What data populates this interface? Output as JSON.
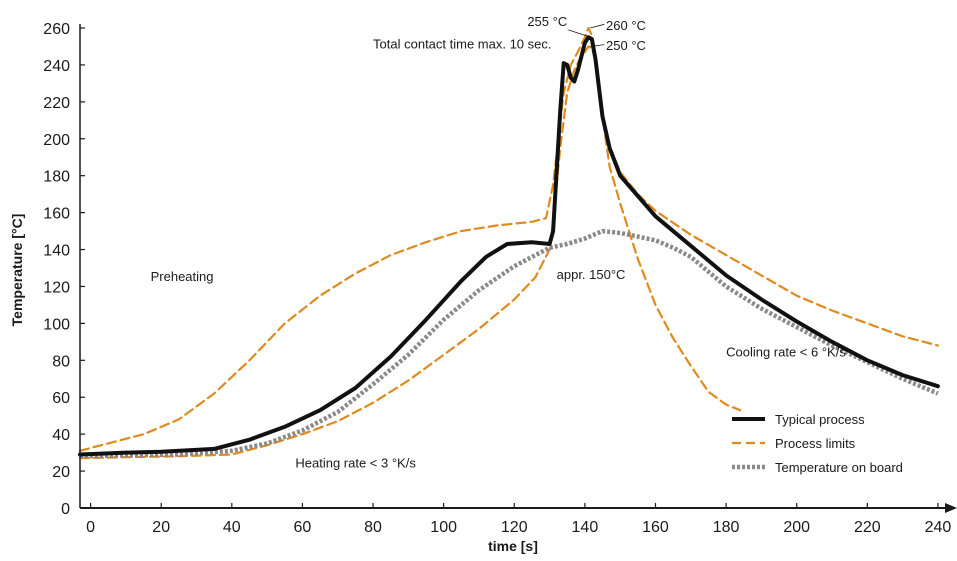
{
  "chart_data": {
    "type": "line",
    "xlabel": "time [s]",
    "ylabel": "Temperature  [°C]",
    "xlim": [
      -3,
      242
    ],
    "ylim": [
      0,
      260
    ],
    "xticks": [
      0,
      20,
      40,
      60,
      80,
      100,
      120,
      140,
      160,
      180,
      200,
      220,
      240
    ],
    "yticks": [
      0,
      20,
      40,
      60,
      80,
      100,
      120,
      140,
      160,
      180,
      200,
      220,
      240,
      260
    ],
    "legend_position": "bottom-right",
    "annotations": [
      {
        "text": "255 °C",
        "x": 135,
        "y": 261
      },
      {
        "text": "260 °C",
        "x": 146,
        "y": 259
      },
      {
        "text": "250 °C",
        "x": 146,
        "y": 248
      },
      {
        "text": "Total contact time max. 10 sec.",
        "x": 80,
        "y": 249
      },
      {
        "text": "Preheating",
        "x": 17,
        "y": 123
      },
      {
        "text": "appr. 150°C",
        "x": 132,
        "y": 124
      },
      {
        "text": "Cooling rate < 6 °K/s",
        "x": 180,
        "y": 82
      },
      {
        "text": "Heating rate < 3 °K/s",
        "x": 58,
        "y": 22
      }
    ],
    "series": [
      {
        "name": "Typical process",
        "color": "#111111",
        "style": "solid",
        "points": [
          [
            -3,
            29
          ],
          [
            10,
            30
          ],
          [
            20,
            30.5
          ],
          [
            35,
            32
          ],
          [
            45,
            37
          ],
          [
            55,
            44
          ],
          [
            65,
            53
          ],
          [
            75,
            65
          ],
          [
            85,
            82
          ],
          [
            95,
            102
          ],
          [
            105,
            123
          ],
          [
            112,
            136
          ],
          [
            118,
            143
          ],
          [
            125,
            144
          ],
          [
            130,
            143
          ],
          [
            131,
            150
          ],
          [
            133,
            215
          ],
          [
            134,
            241
          ],
          [
            135,
            240
          ],
          [
            136,
            233
          ],
          [
            137,
            231
          ],
          [
            138,
            237
          ],
          [
            140,
            252
          ],
          [
            141,
            255
          ],
          [
            142,
            254
          ],
          [
            143,
            243
          ],
          [
            145,
            212
          ],
          [
            147,
            195
          ],
          [
            150,
            180
          ],
          [
            160,
            158
          ],
          [
            170,
            142
          ],
          [
            180,
            126
          ],
          [
            190,
            113
          ],
          [
            200,
            101
          ],
          [
            210,
            90
          ],
          [
            220,
            80
          ],
          [
            230,
            72
          ],
          [
            240,
            66
          ]
        ]
      },
      {
        "name": "Process limits",
        "color": "#e08a1e",
        "style": "dashed",
        "points": [
          [
            -3,
            31
          ],
          [
            5,
            35
          ],
          [
            15,
            40
          ],
          [
            25,
            48
          ],
          [
            35,
            62
          ],
          [
            45,
            80
          ],
          [
            55,
            100
          ],
          [
            65,
            115
          ],
          [
            75,
            127
          ],
          [
            85,
            137
          ],
          [
            95,
            144
          ],
          [
            105,
            150
          ],
          [
            115,
            153
          ],
          [
            125,
            155
          ],
          [
            129,
            157
          ],
          [
            131,
            175
          ],
          [
            134,
            225
          ],
          [
            136,
            240
          ],
          [
            138,
            247
          ],
          [
            140,
            255
          ],
          [
            141,
            260
          ],
          [
            142,
            256
          ],
          [
            143,
            243
          ],
          [
            145,
            212
          ],
          [
            147,
            185
          ],
          [
            150,
            165
          ],
          [
            155,
            135
          ],
          [
            160,
            110
          ],
          [
            165,
            92
          ],
          [
            170,
            77
          ],
          [
            175,
            63
          ],
          [
            180,
            56
          ],
          [
            184,
            53
          ]
        ]
      },
      {
        "name": "Process limits",
        "color": "#e08a1e",
        "style": "dashed",
        "points": [
          [
            -3,
            27
          ],
          [
            10,
            27.5
          ],
          [
            25,
            28
          ],
          [
            40,
            29
          ],
          [
            50,
            34
          ],
          [
            60,
            40
          ],
          [
            70,
            47
          ],
          [
            80,
            57
          ],
          [
            90,
            69
          ],
          [
            100,
            83
          ],
          [
            110,
            97
          ],
          [
            120,
            113
          ],
          [
            126,
            125
          ],
          [
            130,
            140
          ],
          [
            131,
            155
          ],
          [
            133,
            195
          ],
          [
            135,
            225
          ],
          [
            137,
            237
          ],
          [
            139,
            245
          ],
          [
            140,
            247
          ],
          [
            141,
            250
          ],
          [
            142,
            249
          ],
          [
            143,
            243
          ],
          [
            145,
            212
          ],
          [
            147,
            196
          ],
          [
            150,
            182
          ],
          [
            155,
            170
          ],
          [
            160,
            161
          ],
          [
            170,
            148
          ],
          [
            180,
            137
          ],
          [
            190,
            126
          ],
          [
            200,
            115
          ],
          [
            210,
            107
          ],
          [
            220,
            100
          ],
          [
            230,
            93
          ],
          [
            240,
            88
          ]
        ]
      },
      {
        "name": "Temperature on board",
        "color": "#8a8a8a",
        "style": "dotted",
        "points": [
          [
            -3,
            28
          ],
          [
            10,
            28.5
          ],
          [
            25,
            29
          ],
          [
            40,
            31
          ],
          [
            50,
            35
          ],
          [
            60,
            42
          ],
          [
            70,
            52
          ],
          [
            80,
            67
          ],
          [
            90,
            83
          ],
          [
            100,
            102
          ],
          [
            110,
            118
          ],
          [
            120,
            131
          ],
          [
            130,
            141
          ],
          [
            135,
            143
          ],
          [
            140,
            146
          ],
          [
            145,
            150
          ],
          [
            150,
            149
          ],
          [
            155,
            147
          ],
          [
            160,
            145
          ],
          [
            165,
            141
          ],
          [
            170,
            136
          ],
          [
            180,
            120
          ],
          [
            190,
            108
          ],
          [
            200,
            98
          ],
          [
            210,
            88
          ],
          [
            220,
            79
          ],
          [
            230,
            70
          ],
          [
            240,
            62
          ]
        ]
      }
    ],
    "legend": [
      {
        "label": "Typical process",
        "color": "#111111",
        "style": "solid"
      },
      {
        "label": "Process limits",
        "color": "#e08a1e",
        "style": "dashed"
      },
      {
        "label": "Temperature on board",
        "color": "#8a8a8a",
        "style": "dotted"
      }
    ]
  }
}
